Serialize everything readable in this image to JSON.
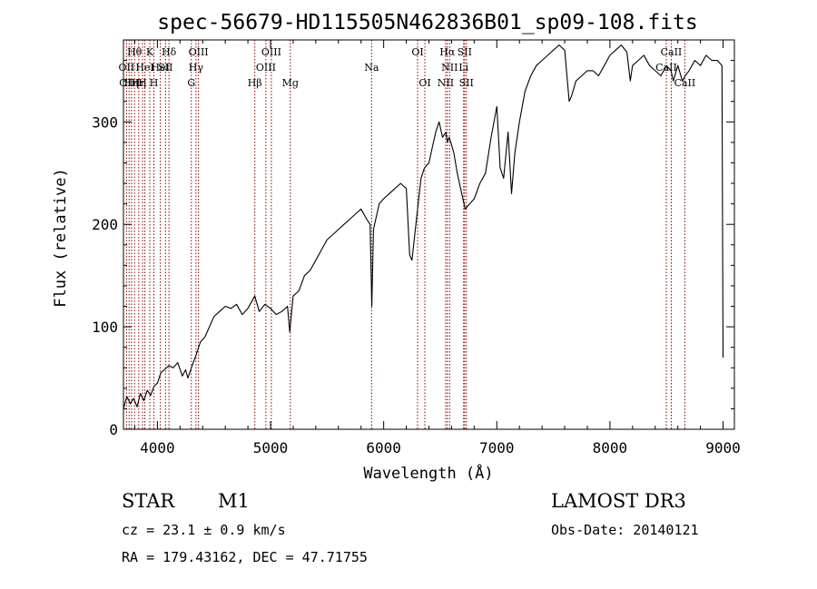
{
  "chart_data": {
    "type": "line",
    "title": "spec-56679-HD115505N462836B01_sp09-108.fits",
    "xlabel": "Wavelength (Å)",
    "ylabel": "Flux (relative)",
    "xlim": [
      3700,
      9100
    ],
    "ylim": [
      0,
      380
    ],
    "xticks": [
      4000,
      5000,
      6000,
      7000,
      8000,
      9000
    ],
    "yticks": [
      0,
      100,
      200,
      300
    ],
    "xtick_labels": [
      "4000",
      "5000",
      "6000",
      "7000",
      "8000",
      "9000"
    ],
    "ytick_labels": [
      "0",
      "100",
      "200",
      "300"
    ],
    "spectrum": {
      "x": [
        3700,
        3730,
        3760,
        3790,
        3820,
        3850,
        3880,
        3910,
        3940,
        3970,
        4000,
        4030,
        4060,
        4100,
        4140,
        4180,
        4220,
        4250,
        4270,
        4300,
        4340,
        4380,
        4420,
        4460,
        4500,
        4550,
        4600,
        4650,
        4700,
        4750,
        4800,
        4860,
        4900,
        4950,
        5000,
        5050,
        5100,
        5150,
        5170,
        5200,
        5250,
        5300,
        5350,
        5400,
        5450,
        5500,
        5550,
        5600,
        5650,
        5700,
        5750,
        5800,
        5850,
        5880,
        5895,
        5910,
        5930,
        5960,
        6000,
        6050,
        6100,
        6150,
        6200,
        6230,
        6250,
        6270,
        6300,
        6330,
        6360,
        6400,
        6430,
        6460,
        6490,
        6520,
        6550,
        6563,
        6580,
        6620,
        6650,
        6680,
        6700,
        6720,
        6760,
        6800,
        6850,
        6900,
        6950,
        7000,
        7030,
        7060,
        7100,
        7130,
        7160,
        7200,
        7250,
        7300,
        7350,
        7400,
        7450,
        7500,
        7550,
        7600,
        7640,
        7660,
        7700,
        7750,
        7800,
        7850,
        7900,
        7950,
        8000,
        8050,
        8100,
        8150,
        8180,
        8200,
        8250,
        8300,
        8350,
        8400,
        8450,
        8500,
        8540,
        8560,
        8600,
        8640,
        8665,
        8700,
        8750,
        8800,
        8850,
        8900,
        8950,
        8990,
        9000
      ],
      "y": [
        20,
        32,
        25,
        30,
        22,
        35,
        28,
        38,
        33,
        42,
        45,
        55,
        58,
        62,
        60,
        65,
        52,
        58,
        50,
        60,
        72,
        85,
        90,
        100,
        110,
        115,
        120,
        118,
        122,
        112,
        118,
        130,
        115,
        122,
        118,
        112,
        115,
        120,
        95,
        130,
        135,
        150,
        155,
        165,
        175,
        185,
        190,
        195,
        200,
        205,
        210,
        215,
        205,
        200,
        120,
        195,
        205,
        220,
        225,
        230,
        235,
        240,
        235,
        170,
        165,
        185,
        215,
        245,
        255,
        260,
        275,
        290,
        300,
        285,
        290,
        280,
        285,
        270,
        250,
        235,
        225,
        215,
        220,
        225,
        240,
        250,
        285,
        315,
        255,
        245,
        290,
        230,
        270,
        300,
        330,
        345,
        355,
        360,
        365,
        370,
        375,
        370,
        320,
        325,
        340,
        345,
        350,
        350,
        345,
        355,
        365,
        370,
        375,
        368,
        340,
        355,
        360,
        365,
        355,
        350,
        345,
        355,
        350,
        340,
        355,
        340,
        345,
        350,
        360,
        355,
        365,
        360,
        360,
        355,
        70
      ]
    },
    "line_markers": [
      {
        "x": 3727,
        "label": "OII",
        "row": 1
      },
      {
        "x": 3750,
        "label": "OIII",
        "row": 2
      },
      {
        "x": 3771,
        "label": "Hη",
        "row": 2
      },
      {
        "x": 3798,
        "label": "Hθ",
        "row": 0
      },
      {
        "x": 3835,
        "label": "Hη",
        "row": 2
      },
      {
        "x": 3869,
        "label": "H",
        "row": 2
      },
      {
        "x": 3889,
        "label": "HeI",
        "row": 1
      },
      {
        "x": 3933,
        "label": "K",
        "row": 0
      },
      {
        "x": 3969,
        "label": "H",
        "row": 2
      },
      {
        "x": 4026,
        "label": "HeI",
        "row": 1
      },
      {
        "x": 4072,
        "label": "SII",
        "row": 1
      },
      {
        "x": 4102,
        "label": "Hδ",
        "row": 0
      },
      {
        "x": 4300,
        "label": "G",
        "row": 2
      },
      {
        "x": 4341,
        "label": "Hγ",
        "row": 1
      },
      {
        "x": 4363,
        "label": "OIII",
        "row": 0
      },
      {
        "x": 4861,
        "label": "Hβ",
        "row": 2
      },
      {
        "x": 4959,
        "label": "OIII",
        "row": 1
      },
      {
        "x": 5007,
        "label": "OIII",
        "row": 0
      },
      {
        "x": 5175,
        "label": "Mg",
        "row": 2
      },
      {
        "x": 5893,
        "label": "Na",
        "row": 1
      },
      {
        "x": 6300,
        "label": "OI",
        "row": 0
      },
      {
        "x": 6364,
        "label": "OI",
        "row": 2
      },
      {
        "x": 6548,
        "label": "NII",
        "row": 2
      },
      {
        "x": 6563,
        "label": "Hα",
        "row": 0
      },
      {
        "x": 6583,
        "label": "NII",
        "row": 1
      },
      {
        "x": 6707,
        "label": "Li",
        "row": 1
      },
      {
        "x": 6716,
        "label": "SII",
        "row": 0
      },
      {
        "x": 6731,
        "label": "SII",
        "row": 2
      },
      {
        "x": 8498,
        "label": "CaII",
        "row": 1
      },
      {
        "x": 8542,
        "label": "CaII",
        "row": 0
      },
      {
        "x": 8662,
        "label": "CaII",
        "row": 2
      }
    ],
    "marker_color": "#8b0000"
  },
  "info": {
    "class_label": "STAR",
    "subclass": "M1",
    "survey": "LAMOST DR3",
    "cz": "cz = 23.1 ± 0.9 km/s",
    "obs_date": "Obs-Date: 20140121",
    "coords": "RA = 179.43162, DEC =  47.71755"
  }
}
